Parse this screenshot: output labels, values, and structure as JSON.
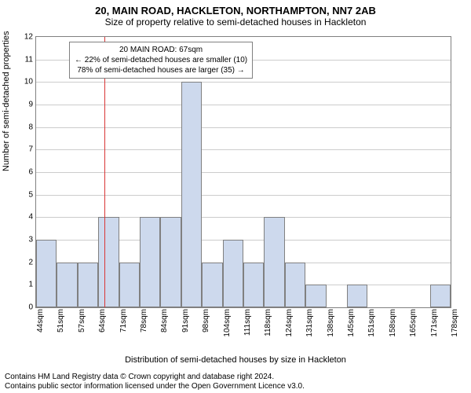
{
  "title_main": "20, MAIN ROAD, HACKLETON, NORTHAMPTON, NN7 2AB",
  "title_sub": "Size of property relative to semi-detached houses in Hackleton",
  "ylabel": "Number of semi-detached properties",
  "xlabel": "Distribution of semi-detached houses by size in Hackleton",
  "chart": {
    "type": "histogram",
    "background_color": "#ffffff",
    "bar_color": "#cdd9ed",
    "bar_border_color": "#808080",
    "grid_color": "#cccccc",
    "axis_color": "#808080",
    "ref_line_color": "#d93636",
    "ylim": [
      0,
      12
    ],
    "ytick_step": 1,
    "x_start": 44,
    "x_step": 7,
    "x_bins": 20,
    "xtick_labels": [
      "44sqm",
      "51sqm",
      "57sqm",
      "64sqm",
      "71sqm",
      "78sqm",
      "84sqm",
      "91sqm",
      "98sqm",
      "104sqm",
      "111sqm",
      "118sqm",
      "124sqm",
      "131sqm",
      "138sqm",
      "145sqm",
      "151sqm",
      "158sqm",
      "165sqm",
      "171sqm",
      "178sqm"
    ],
    "values": [
      3,
      2,
      2,
      4,
      2,
      4,
      4,
      10,
      2,
      3,
      2,
      4,
      2,
      1,
      0,
      1,
      0,
      0,
      0,
      1
    ],
    "ref_line_x": 67,
    "annot_lines": [
      "20 MAIN ROAD: 67sqm",
      "← 22% of semi-detached houses are smaller (10)",
      "78% of semi-detached houses are larger (35) →"
    ],
    "label_fontsize": 11,
    "tick_fontsize": 10
  },
  "footer": {
    "l1": "Contains HM Land Registry data © Crown copyright and database right 2024.",
    "l2": "Contains public sector information licensed under the Open Government Licence v3.0."
  }
}
